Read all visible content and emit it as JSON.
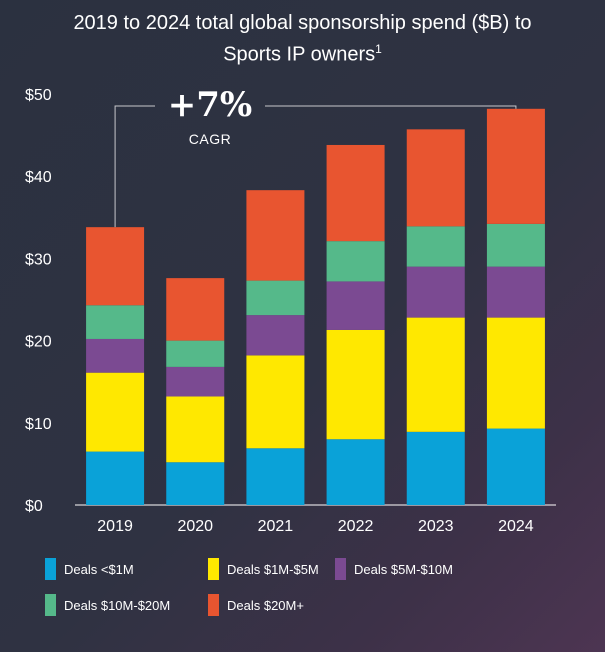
{
  "title": {
    "line1": "2019 to 2024 total global sponsorship spend ($B) to",
    "line2": "Sports IP owners",
    "footnote": "1"
  },
  "annotation": {
    "value": "+7%",
    "label": "CAGR"
  },
  "legend": [
    {
      "label": "Deals <$1M",
      "color": "#0aa2d8"
    },
    {
      "label": "Deals $1M-$5M",
      "color": "#ffe800"
    },
    {
      "label": "Deals $5M-$10M",
      "color": "#7b4a92"
    },
    {
      "label": "Deals $10M-$20M",
      "color": "#55b98a"
    },
    {
      "label": "Deals $20M+",
      "color": "#e85530"
    }
  ],
  "chart_data": {
    "type": "bar",
    "stacked": true,
    "categories": [
      "2019",
      "2020",
      "2021",
      "2022",
      "2023",
      "2024"
    ],
    "y_ticks": [
      "$0",
      "$10",
      "$20",
      "$30",
      "$40",
      "$50"
    ],
    "ylim": [
      0,
      50
    ],
    "series": [
      {
        "name": "Deals <$1M",
        "color": "#0aa2d8",
        "values": [
          6.5,
          5.2,
          6.9,
          8.0,
          8.9,
          9.3
        ]
      },
      {
        "name": "Deals $1M-$5M",
        "color": "#ffe800",
        "values": [
          9.6,
          8.0,
          11.3,
          13.3,
          13.9,
          13.5
        ]
      },
      {
        "name": "Deals $5M-$10M",
        "color": "#7b4a92",
        "values": [
          4.1,
          3.6,
          4.9,
          5.9,
          6.2,
          6.2
        ]
      },
      {
        "name": "Deals $10M-$20M",
        "color": "#55b98a",
        "values": [
          4.1,
          3.2,
          4.2,
          4.9,
          4.9,
          5.2
        ]
      },
      {
        "name": "Deals $20M+",
        "color": "#e85530",
        "values": [
          9.5,
          7.6,
          11.0,
          11.7,
          11.8,
          14.0
        ]
      }
    ]
  }
}
